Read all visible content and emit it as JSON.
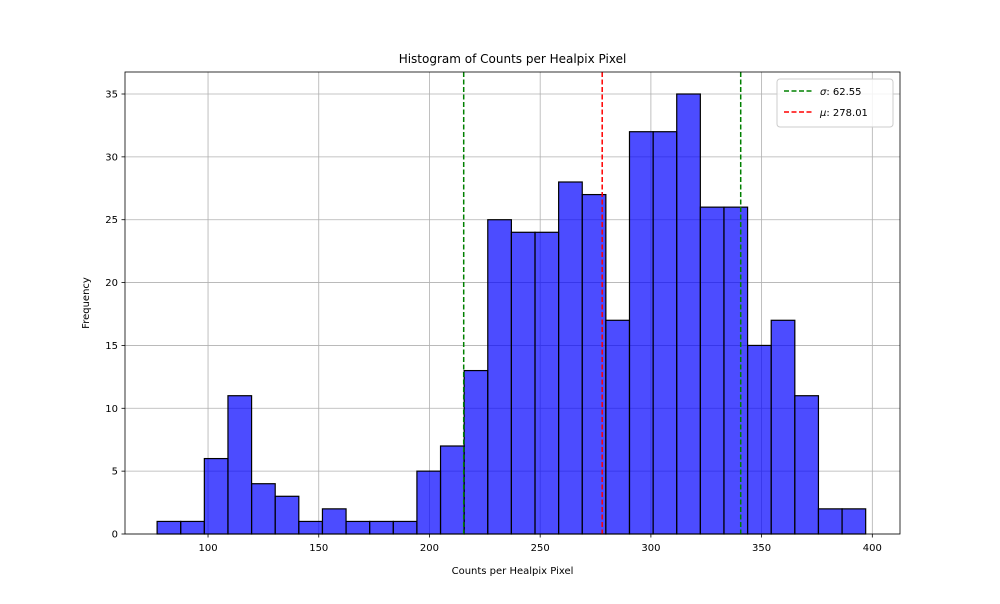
{
  "chart_data": {
    "type": "bar",
    "title": "Histogram of Counts per Healpix Pixel",
    "xlabel": "Counts per Healpix Pixel",
    "ylabel": "Frequency",
    "xlim": [
      62.5,
      412.5
    ],
    "ylim": [
      0,
      36.75
    ],
    "xticks": [
      100,
      150,
      200,
      250,
      300,
      350,
      400
    ],
    "yticks": [
      0,
      5,
      10,
      15,
      20,
      25,
      30,
      35
    ],
    "grid": true,
    "bin_start": 77,
    "bin_width": 10.6667,
    "values": [
      1,
      1,
      6,
      11,
      4,
      3,
      1,
      2,
      1,
      1,
      1,
      5,
      7,
      13,
      25,
      24,
      24,
      28,
      27,
      17,
      32,
      32,
      35,
      26,
      26,
      15,
      17,
      11,
      2,
      2
    ],
    "bar_color": "#0000ff",
    "bar_edge_color": "#000000",
    "vlines": [
      {
        "x": 215.46,
        "color": "#008000"
      },
      {
        "x": 278.01,
        "color": "#ff0000"
      },
      {
        "x": 340.56,
        "color": "#008000"
      }
    ],
    "legend": {
      "position": "top-right",
      "entries": [
        {
          "symbol": "σ",
          "value": ": 62.55",
          "color": "#008000"
        },
        {
          "symbol": "μ",
          "value": ": 278.01",
          "color": "#ff0000"
        }
      ]
    }
  }
}
